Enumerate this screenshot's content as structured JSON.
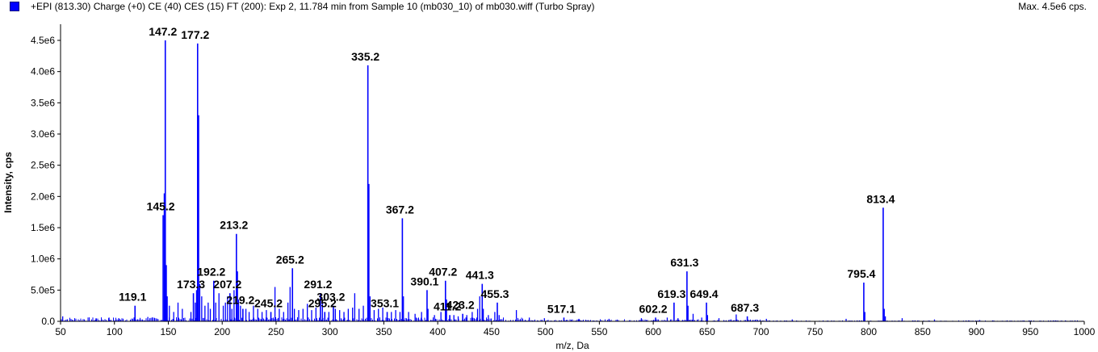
{
  "header": {
    "title": "+EPI (813.30) Charge (+0) CE (40) CES (15) FT (200): Exp 2, 11.784 min from Sample 10 (mb030_10) of mb030.wiff (Turbo Spray)",
    "max_label": "Max. 4.5e6 cps.",
    "swatch_color": "#0000ff"
  },
  "chart_data": {
    "type": "bar",
    "xlabel": "m/z, Da",
    "ylabel": "Intensity, cps",
    "xlim": [
      50,
      1000
    ],
    "ylim": [
      0,
      4500000
    ],
    "series_color": "#0000ff",
    "x_ticks": [
      "50",
      "100",
      "150",
      "200",
      "250",
      "300",
      "350",
      "400",
      "450",
      "500",
      "550",
      "600",
      "650",
      "700",
      "750",
      "800",
      "850",
      "900",
      "950",
      "1000"
    ],
    "y_ticks": [
      "0.0",
      "5.0e5",
      "1.0e6",
      "1.5e6",
      "2.0e6",
      "2.5e6",
      "3.0e6",
      "3.5e6",
      "4.0e6",
      "4.5e6"
    ],
    "peaks": [
      {
        "x": 119.1,
        "y": 250000,
        "label": "119.1"
      },
      {
        "x": 145.2,
        "y": 1700000,
        "label": "145.2"
      },
      {
        "x": 147.2,
        "y": 4500000,
        "label": "147.2"
      },
      {
        "x": 173.3,
        "y": 450000,
        "label": "173.3"
      },
      {
        "x": 177.2,
        "y": 4450000,
        "label": "177.2"
      },
      {
        "x": 192.2,
        "y": 650000,
        "label": "192.2"
      },
      {
        "x": 207.2,
        "y": 450000,
        "label": "207.2"
      },
      {
        "x": 213.2,
        "y": 1400000,
        "label": "213.2"
      },
      {
        "x": 219.2,
        "y": 200000,
        "label": "219.2"
      },
      {
        "x": 245.2,
        "y": 150000,
        "label": "245.2"
      },
      {
        "x": 265.2,
        "y": 850000,
        "label": "265.2"
      },
      {
        "x": 291.2,
        "y": 450000,
        "label": "291.2"
      },
      {
        "x": 295.2,
        "y": 150000,
        "label": "295.2"
      },
      {
        "x": 303.2,
        "y": 250000,
        "label": "303.2"
      },
      {
        "x": 335.2,
        "y": 4100000,
        "label": "335.2"
      },
      {
        "x": 353.1,
        "y": 150000,
        "label": "353.1"
      },
      {
        "x": 367.2,
        "y": 1650000,
        "label": "367.2"
      },
      {
        "x": 390.1,
        "y": 500000,
        "label": "390.1"
      },
      {
        "x": 407.2,
        "y": 650000,
        "label": "407.2"
      },
      {
        "x": 411.2,
        "y": 100000,
        "label": "411.2"
      },
      {
        "x": 423.2,
        "y": 120000,
        "label": "423.2"
      },
      {
        "x": 441.3,
        "y": 600000,
        "label": "441.3"
      },
      {
        "x": 455.3,
        "y": 300000,
        "label": "455.3"
      },
      {
        "x": 517.1,
        "y": 60000,
        "label": "517.1"
      },
      {
        "x": 602.2,
        "y": 60000,
        "label": "602.2"
      },
      {
        "x": 619.3,
        "y": 300000,
        "label": "619.3"
      },
      {
        "x": 631.3,
        "y": 800000,
        "label": "631.3"
      },
      {
        "x": 649.4,
        "y": 300000,
        "label": "649.4"
      },
      {
        "x": 687.3,
        "y": 80000,
        "label": "687.3"
      },
      {
        "x": 795.4,
        "y": 620000,
        "label": "795.4"
      },
      {
        "x": 813.4,
        "y": 1820000,
        "label": "813.4"
      }
    ],
    "minor_peaks": [
      {
        "x": 52,
        "y": 80000
      },
      {
        "x": 83,
        "y": 50000
      },
      {
        "x": 95,
        "y": 60000
      },
      {
        "x": 104,
        "y": 50000
      },
      {
        "x": 131,
        "y": 70000
      },
      {
        "x": 146.2,
        "y": 2050000
      },
      {
        "x": 148.2,
        "y": 900000
      },
      {
        "x": 149,
        "y": 400000
      },
      {
        "x": 151,
        "y": 250000
      },
      {
        "x": 155,
        "y": 150000
      },
      {
        "x": 159,
        "y": 300000
      },
      {
        "x": 163,
        "y": 200000
      },
      {
        "x": 171,
        "y": 150000
      },
      {
        "x": 175,
        "y": 300000
      },
      {
        "x": 176.2,
        "y": 500000
      },
      {
        "x": 178.2,
        "y": 3300000
      },
      {
        "x": 179.2,
        "y": 600000
      },
      {
        "x": 181,
        "y": 400000
      },
      {
        "x": 184,
        "y": 250000
      },
      {
        "x": 187,
        "y": 300000
      },
      {
        "x": 189,
        "y": 200000
      },
      {
        "x": 194,
        "y": 300000
      },
      {
        "x": 197,
        "y": 450000
      },
      {
        "x": 201,
        "y": 250000
      },
      {
        "x": 203,
        "y": 300000
      },
      {
        "x": 205,
        "y": 400000
      },
      {
        "x": 209,
        "y": 200000
      },
      {
        "x": 211,
        "y": 500000
      },
      {
        "x": 214.2,
        "y": 800000
      },
      {
        "x": 215.2,
        "y": 350000
      },
      {
        "x": 217,
        "y": 250000
      },
      {
        "x": 222,
        "y": 200000
      },
      {
        "x": 225,
        "y": 150000
      },
      {
        "x": 229,
        "y": 250000
      },
      {
        "x": 233,
        "y": 200000
      },
      {
        "x": 237,
        "y": 150000
      },
      {
        "x": 241,
        "y": 180000
      },
      {
        "x": 249,
        "y": 550000
      },
      {
        "x": 253,
        "y": 200000
      },
      {
        "x": 257,
        "y": 150000
      },
      {
        "x": 261,
        "y": 300000
      },
      {
        "x": 263,
        "y": 550000
      },
      {
        "x": 267,
        "y": 200000
      },
      {
        "x": 271,
        "y": 180000
      },
      {
        "x": 275,
        "y": 200000
      },
      {
        "x": 279,
        "y": 280000
      },
      {
        "x": 283,
        "y": 180000
      },
      {
        "x": 287,
        "y": 220000
      },
      {
        "x": 293,
        "y": 300000
      },
      {
        "x": 299,
        "y": 150000
      },
      {
        "x": 305,
        "y": 200000
      },
      {
        "x": 309,
        "y": 180000
      },
      {
        "x": 313,
        "y": 150000
      },
      {
        "x": 317,
        "y": 200000
      },
      {
        "x": 321,
        "y": 220000
      },
      {
        "x": 323,
        "y": 450000
      },
      {
        "x": 327,
        "y": 200000
      },
      {
        "x": 331,
        "y": 250000
      },
      {
        "x": 336.2,
        "y": 2200000
      },
      {
        "x": 337.2,
        "y": 400000
      },
      {
        "x": 341,
        "y": 180000
      },
      {
        "x": 345,
        "y": 200000
      },
      {
        "x": 349,
        "y": 220000
      },
      {
        "x": 357,
        "y": 150000
      },
      {
        "x": 361,
        "y": 180000
      },
      {
        "x": 365,
        "y": 150000
      },
      {
        "x": 368.2,
        "y": 400000
      },
      {
        "x": 373,
        "y": 150000
      },
      {
        "x": 379,
        "y": 120000
      },
      {
        "x": 385,
        "y": 150000
      },
      {
        "x": 391,
        "y": 200000
      },
      {
        "x": 397,
        "y": 100000
      },
      {
        "x": 403,
        "y": 150000
      },
      {
        "x": 408.2,
        "y": 350000
      },
      {
        "x": 415,
        "y": 100000
      },
      {
        "x": 419,
        "y": 80000
      },
      {
        "x": 427,
        "y": 100000
      },
      {
        "x": 432,
        "y": 150000
      },
      {
        "x": 437,
        "y": 200000
      },
      {
        "x": 439,
        "y": 400000
      },
      {
        "x": 442.3,
        "y": 200000
      },
      {
        "x": 447,
        "y": 100000
      },
      {
        "x": 453,
        "y": 150000
      },
      {
        "x": 457,
        "y": 100000
      },
      {
        "x": 473,
        "y": 180000
      },
      {
        "x": 485,
        "y": 60000
      },
      {
        "x": 499,
        "y": 50000
      },
      {
        "x": 531,
        "y": 40000
      },
      {
        "x": 559,
        "y": 40000
      },
      {
        "x": 589,
        "y": 50000
      },
      {
        "x": 613,
        "y": 60000
      },
      {
        "x": 623,
        "y": 50000
      },
      {
        "x": 632.3,
        "y": 250000
      },
      {
        "x": 637,
        "y": 120000
      },
      {
        "x": 645,
        "y": 60000
      },
      {
        "x": 650.4,
        "y": 100000
      },
      {
        "x": 661,
        "y": 50000
      },
      {
        "x": 677,
        "y": 110000
      },
      {
        "x": 705,
        "y": 40000
      },
      {
        "x": 729,
        "y": 30000
      },
      {
        "x": 779,
        "y": 40000
      },
      {
        "x": 796.4,
        "y": 150000
      },
      {
        "x": 814.4,
        "y": 200000
      },
      {
        "x": 815.4,
        "y": 80000
      },
      {
        "x": 831,
        "y": 50000
      },
      {
        "x": 861,
        "y": 30000
      },
      {
        "x": 903,
        "y": 20000
      }
    ]
  }
}
